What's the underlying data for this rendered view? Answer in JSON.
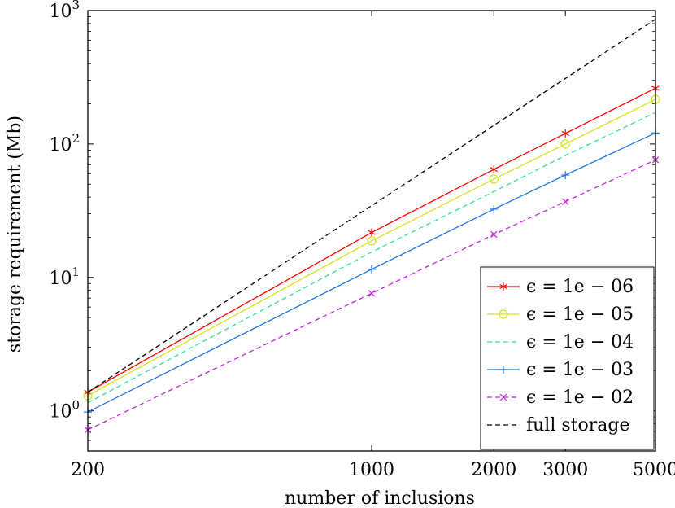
{
  "chart_data": {
    "type": "line",
    "title": "",
    "xlabel": "number of inclusions",
    "ylabel": "storage requirement (Mb)",
    "xscale": "log",
    "yscale": "log",
    "xlim": [
      200,
      5000
    ],
    "ylim": [
      0.5,
      1000
    ],
    "xticks": [
      {
        "value": 200,
        "label": "200"
      },
      {
        "value": 1000,
        "label": "1000"
      },
      {
        "value": 2000,
        "label": "2000"
      },
      {
        "value": 3000,
        "label": "3000"
      },
      {
        "value": 5000,
        "label": "5000"
      }
    ],
    "yticks": [
      {
        "value": 1,
        "base": "10",
        "exp": "0"
      },
      {
        "value": 10,
        "base": "10",
        "exp": "1"
      },
      {
        "value": 100,
        "base": "10",
        "exp": "2"
      },
      {
        "value": 1000,
        "base": "10",
        "exp": "3"
      }
    ],
    "grid": false,
    "legend_position": "bottom-right",
    "x": [
      200,
      1000,
      2000,
      3000,
      5000
    ],
    "series": [
      {
        "name": "ϵ = 1e − 06",
        "color": "#ff0000",
        "dash": "solid",
        "marker": "asterisk",
        "values": [
          1.38,
          21.7,
          64.5,
          120,
          262
        ]
      },
      {
        "name": "ϵ = 1e − 05",
        "color": "#d4e31a",
        "dash": "solid",
        "marker": "circle",
        "values": [
          1.3,
          18.8,
          54.5,
          100,
          216
        ]
      },
      {
        "name": "ϵ = 1e − 04",
        "color": "#2ee58c",
        "dash": "dashed",
        "marker": "none",
        "values": [
          1.15,
          15.5,
          44,
          82,
          172
        ]
      },
      {
        "name": "ϵ = 1e − 03",
        "color": "#1f77e8",
        "dash": "solid",
        "marker": "plus",
        "values": [
          0.98,
          11.5,
          32.5,
          58.5,
          121
        ]
      },
      {
        "name": "ϵ = 1e − 02",
        "color": "#c424e0",
        "dash": "dashed",
        "marker": "cross",
        "values": [
          0.72,
          7.6,
          21,
          37,
          76
        ]
      },
      {
        "name": "full storage",
        "color": "#000000",
        "dash": "dashed",
        "marker": "none",
        "values": [
          1.38,
          34.5,
          138,
          310,
          860
        ]
      }
    ]
  }
}
